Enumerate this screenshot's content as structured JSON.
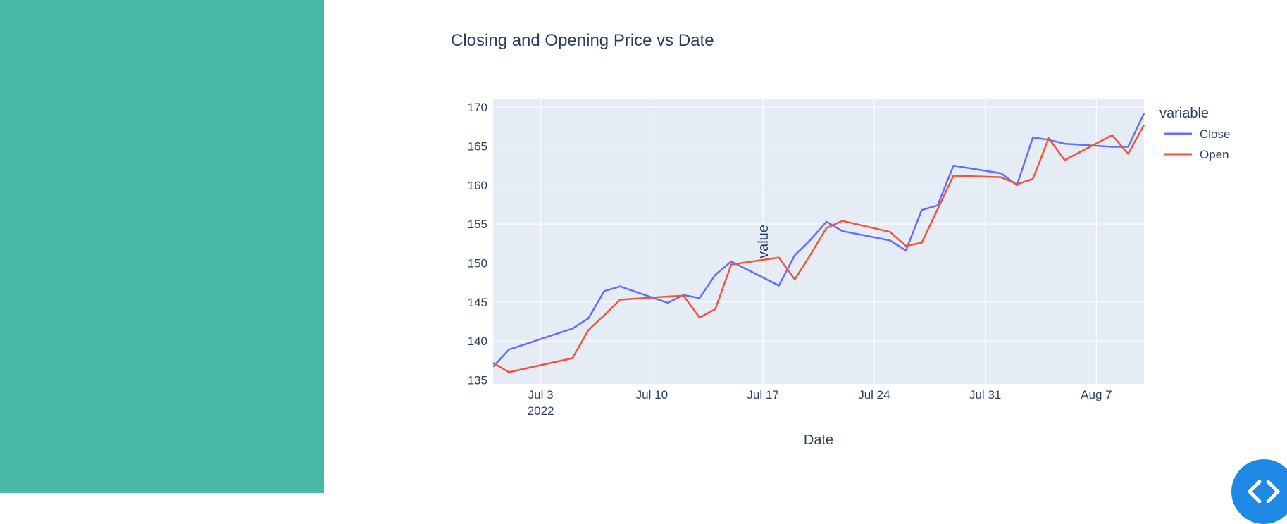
{
  "chart_data": {
    "type": "line",
    "title": "Closing and Opening Price vs Date",
    "xlabel": "Date",
    "ylabel": "value",
    "legend_title": "variable",
    "legend_position": "right",
    "grid": true,
    "xlim": [
      "2022-06-30",
      "2022-08-10"
    ],
    "ylim": [
      134.5,
      171.0
    ],
    "yticks": [
      135,
      140,
      145,
      150,
      155,
      160,
      165,
      170
    ],
    "xticks": [
      {
        "date": "2022-07-03",
        "label": "Jul 3",
        "sublabel": "2022"
      },
      {
        "date": "2022-07-10",
        "label": "Jul 10"
      },
      {
        "date": "2022-07-17",
        "label": "Jul 17"
      },
      {
        "date": "2022-07-24",
        "label": "Jul 24"
      },
      {
        "date": "2022-07-31",
        "label": "Jul 31"
      },
      {
        "date": "2022-08-07",
        "label": "Aug 7"
      }
    ],
    "x": [
      "2022-06-30",
      "2022-07-01",
      "2022-07-05",
      "2022-07-06",
      "2022-07-07",
      "2022-07-08",
      "2022-07-11",
      "2022-07-12",
      "2022-07-13",
      "2022-07-14",
      "2022-07-15",
      "2022-07-18",
      "2022-07-19",
      "2022-07-20",
      "2022-07-21",
      "2022-07-22",
      "2022-07-25",
      "2022-07-26",
      "2022-07-27",
      "2022-07-28",
      "2022-07-29",
      "2022-08-01",
      "2022-08-02",
      "2022-08-03",
      "2022-08-04",
      "2022-08-05",
      "2022-08-08",
      "2022-08-09",
      "2022-08-10"
    ],
    "series": [
      {
        "name": "Close",
        "color": "#636efa",
        "values": [
          136.7,
          138.9,
          141.6,
          142.9,
          146.4,
          147.0,
          144.9,
          145.9,
          145.5,
          148.5,
          150.2,
          147.1,
          151.0,
          153.0,
          155.3,
          154.1,
          152.9,
          151.6,
          156.8,
          157.4,
          162.5,
          161.5,
          160.0,
          166.1,
          165.8,
          165.3,
          164.9,
          164.9,
          169.2
        ]
      },
      {
        "name": "Open",
        "color": "#ef553b",
        "values": [
          137.2,
          136.0,
          137.8,
          141.4,
          143.3,
          145.3,
          145.7,
          145.8,
          143.0,
          144.1,
          149.8,
          150.7,
          147.9,
          151.1,
          154.5,
          155.4,
          154.0,
          152.2,
          152.6,
          156.9,
          161.2,
          161.0,
          160.1,
          160.8,
          166.0,
          163.2,
          166.4,
          164.0,
          167.7
        ]
      }
    ]
  }
}
